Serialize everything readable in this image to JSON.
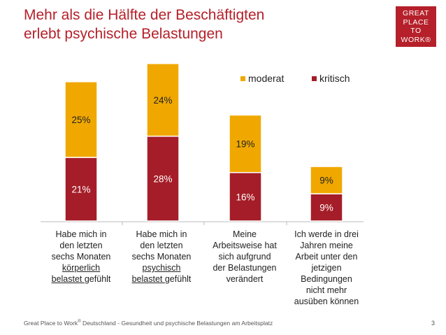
{
  "slide": {
    "title_line1": "Mehr als die Hälfte der Beschäftigten",
    "title_line2": "erlebt psychische Belastungen",
    "logo_lines": [
      "GREAT",
      "PLACE",
      "TO",
      "WORK®"
    ],
    "footer_pre": "Great Place to Work",
    "footer_sup": "®",
    "footer_post": " Deutschland  - Gesundheit und psychische Belastungen am Arbeitsplatz",
    "page_number": "3"
  },
  "colors": {
    "moderat": "#f0a800",
    "kritisch": "#a51d28",
    "title": "#b5202a"
  },
  "chart_data": {
    "type": "bar",
    "stacked": true,
    "categories": [
      "Habe mich in den letzten sechs Monaten körperlich belastet gefühlt",
      "Habe mich in den letzten sechs Monaten psychisch belastet gefühlt",
      "Meine Arbeitsweise hat sich aufgrund der Belastungen verändert",
      "Ich werde in drei Jahren meine Arbeit unter den jetzigen Bedingungen nicht mehr ausüben können"
    ],
    "category_lines": [
      [
        "Habe mich in",
        "den letzten",
        "sechs Monaten",
        "körperlich",
        "belastet gefühlt"
      ],
      [
        "Habe mich in",
        "den letzten",
        "sechs Monaten",
        "psychisch",
        "belastet gefühlt"
      ],
      [
        "Meine",
        "Arbeitsweise hat",
        "sich aufgrund",
        "der Belastungen",
        "verändert"
      ],
      [
        "Ich werde in drei",
        "Jahren meine",
        "Arbeit unter den",
        "jetzigen",
        "Bedingungen",
        "nicht mehr",
        "ausüben können"
      ]
    ],
    "series": [
      {
        "name": "kritisch",
        "values": [
          21,
          28,
          16,
          9
        ],
        "labels": [
          "21%",
          "28%",
          "16%",
          "9%"
        ]
      },
      {
        "name": "moderat",
        "values": [
          25,
          24,
          19,
          9
        ],
        "labels": [
          "25%",
          "24%",
          "19%",
          "9%"
        ]
      }
    ],
    "legend": [
      "moderat",
      "kritisch"
    ],
    "legend_position": "top-right",
    "ylim": [
      0,
      52
    ],
    "grid": false
  }
}
